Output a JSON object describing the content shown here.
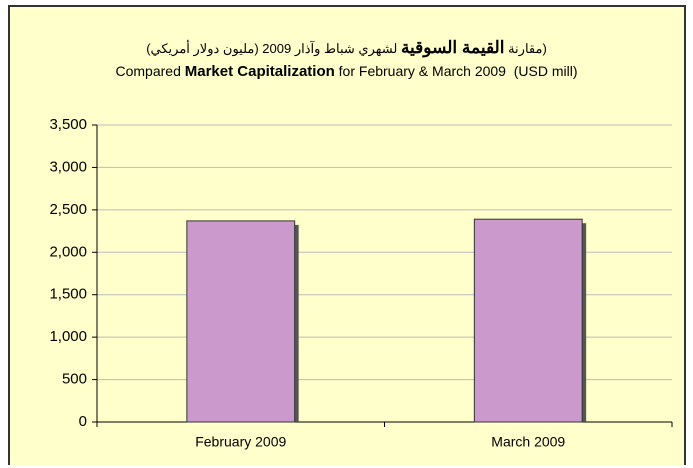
{
  "chart_data": {
    "type": "bar",
    "title_ar": [
      "(مقارنة ",
      "القيمة السوقية",
      " لشهري  شباط وآذار 2009  (مليون دولار أمريكي)"
    ],
    "title_en": [
      "Compared ",
      "Market Capitalization",
      " for February & March 2009  (USD mill)"
    ],
    "categories": [
      "February 2009",
      "March 2009"
    ],
    "values": [
      2370,
      2390
    ],
    "color": "#cc99cc",
    "ylim": [
      0,
      3500
    ],
    "yticks": [
      0,
      500,
      {
        "value": 1000,
        "label": "1,000"
      },
      {
        "value": 1500,
        "label": "1,500"
      },
      {
        "value": 2000,
        "label": "2,000"
      },
      {
        "value": 2500,
        "label": "2,500"
      },
      {
        "value": 3000,
        "label": "3,000"
      },
      {
        "value": 3500,
        "label": "3,500"
      }
    ],
    "grid": true
  }
}
